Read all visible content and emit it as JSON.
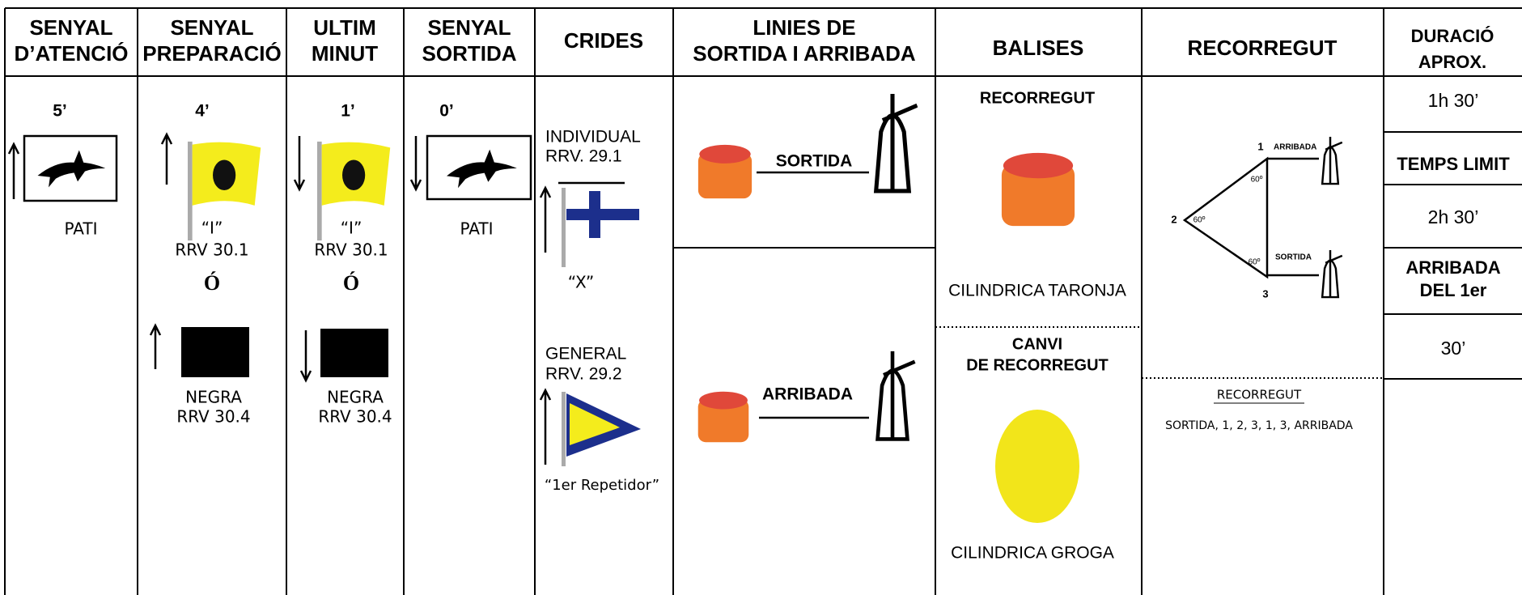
{
  "headers": [
    [
      "SENYAL",
      "D’ATENCIÓ"
    ],
    [
      "SENYAL",
      "PREPARACIÓ"
    ],
    [
      "ULTIM",
      "MINUT"
    ],
    [
      "SENYAL",
      "SORTIDA"
    ],
    [
      "CRIDES"
    ],
    [
      "LINIES DE",
      "SORTIDA I ARRIBADA"
    ],
    [
      "BALISES"
    ],
    [
      "RECORREGUT"
    ],
    [
      "DURACIÓ",
      "APROX."
    ]
  ],
  "columns": [
    [
      "5’",
      "PATI"
    ],
    [
      "4’",
      "“I”",
      "RRV  30.1",
      "Ó",
      "NEGRA",
      "RRV 30.4"
    ],
    [
      "1’",
      "“I”",
      "RRV  30.1",
      "Ó",
      "NEGRA",
      "RRV 30.4"
    ],
    [
      "0’",
      "PATI"
    ],
    [
      "INDIVIDUAL",
      "RRV. 29.1",
      "“X”",
      "GENERAL",
      "RRV. 29.2",
      "“1er Repetidor”"
    ],
    [
      "SORTIDA",
      "ARRIBADA"
    ],
    [
      "RECORREGUT",
      "CILINDRICA TARONJA",
      "CANVI",
      "DE RECORREGUT",
      "CILINDRICA GROGA"
    ],
    [
      "1",
      "ARRIBADA",
      "60º",
      "2",
      "60º",
      "60º",
      "SORTIDA",
      "3",
      "RECORREGUT",
      "SORTIDA, 1, 2, 3, 1, 3,  ARRIBADA"
    ],
    [
      "1h 30’",
      "TEMPS LIMIT",
      "2h 30’",
      "ARRIBADA",
      "DEL 1er",
      "30’"
    ]
  ]
}
